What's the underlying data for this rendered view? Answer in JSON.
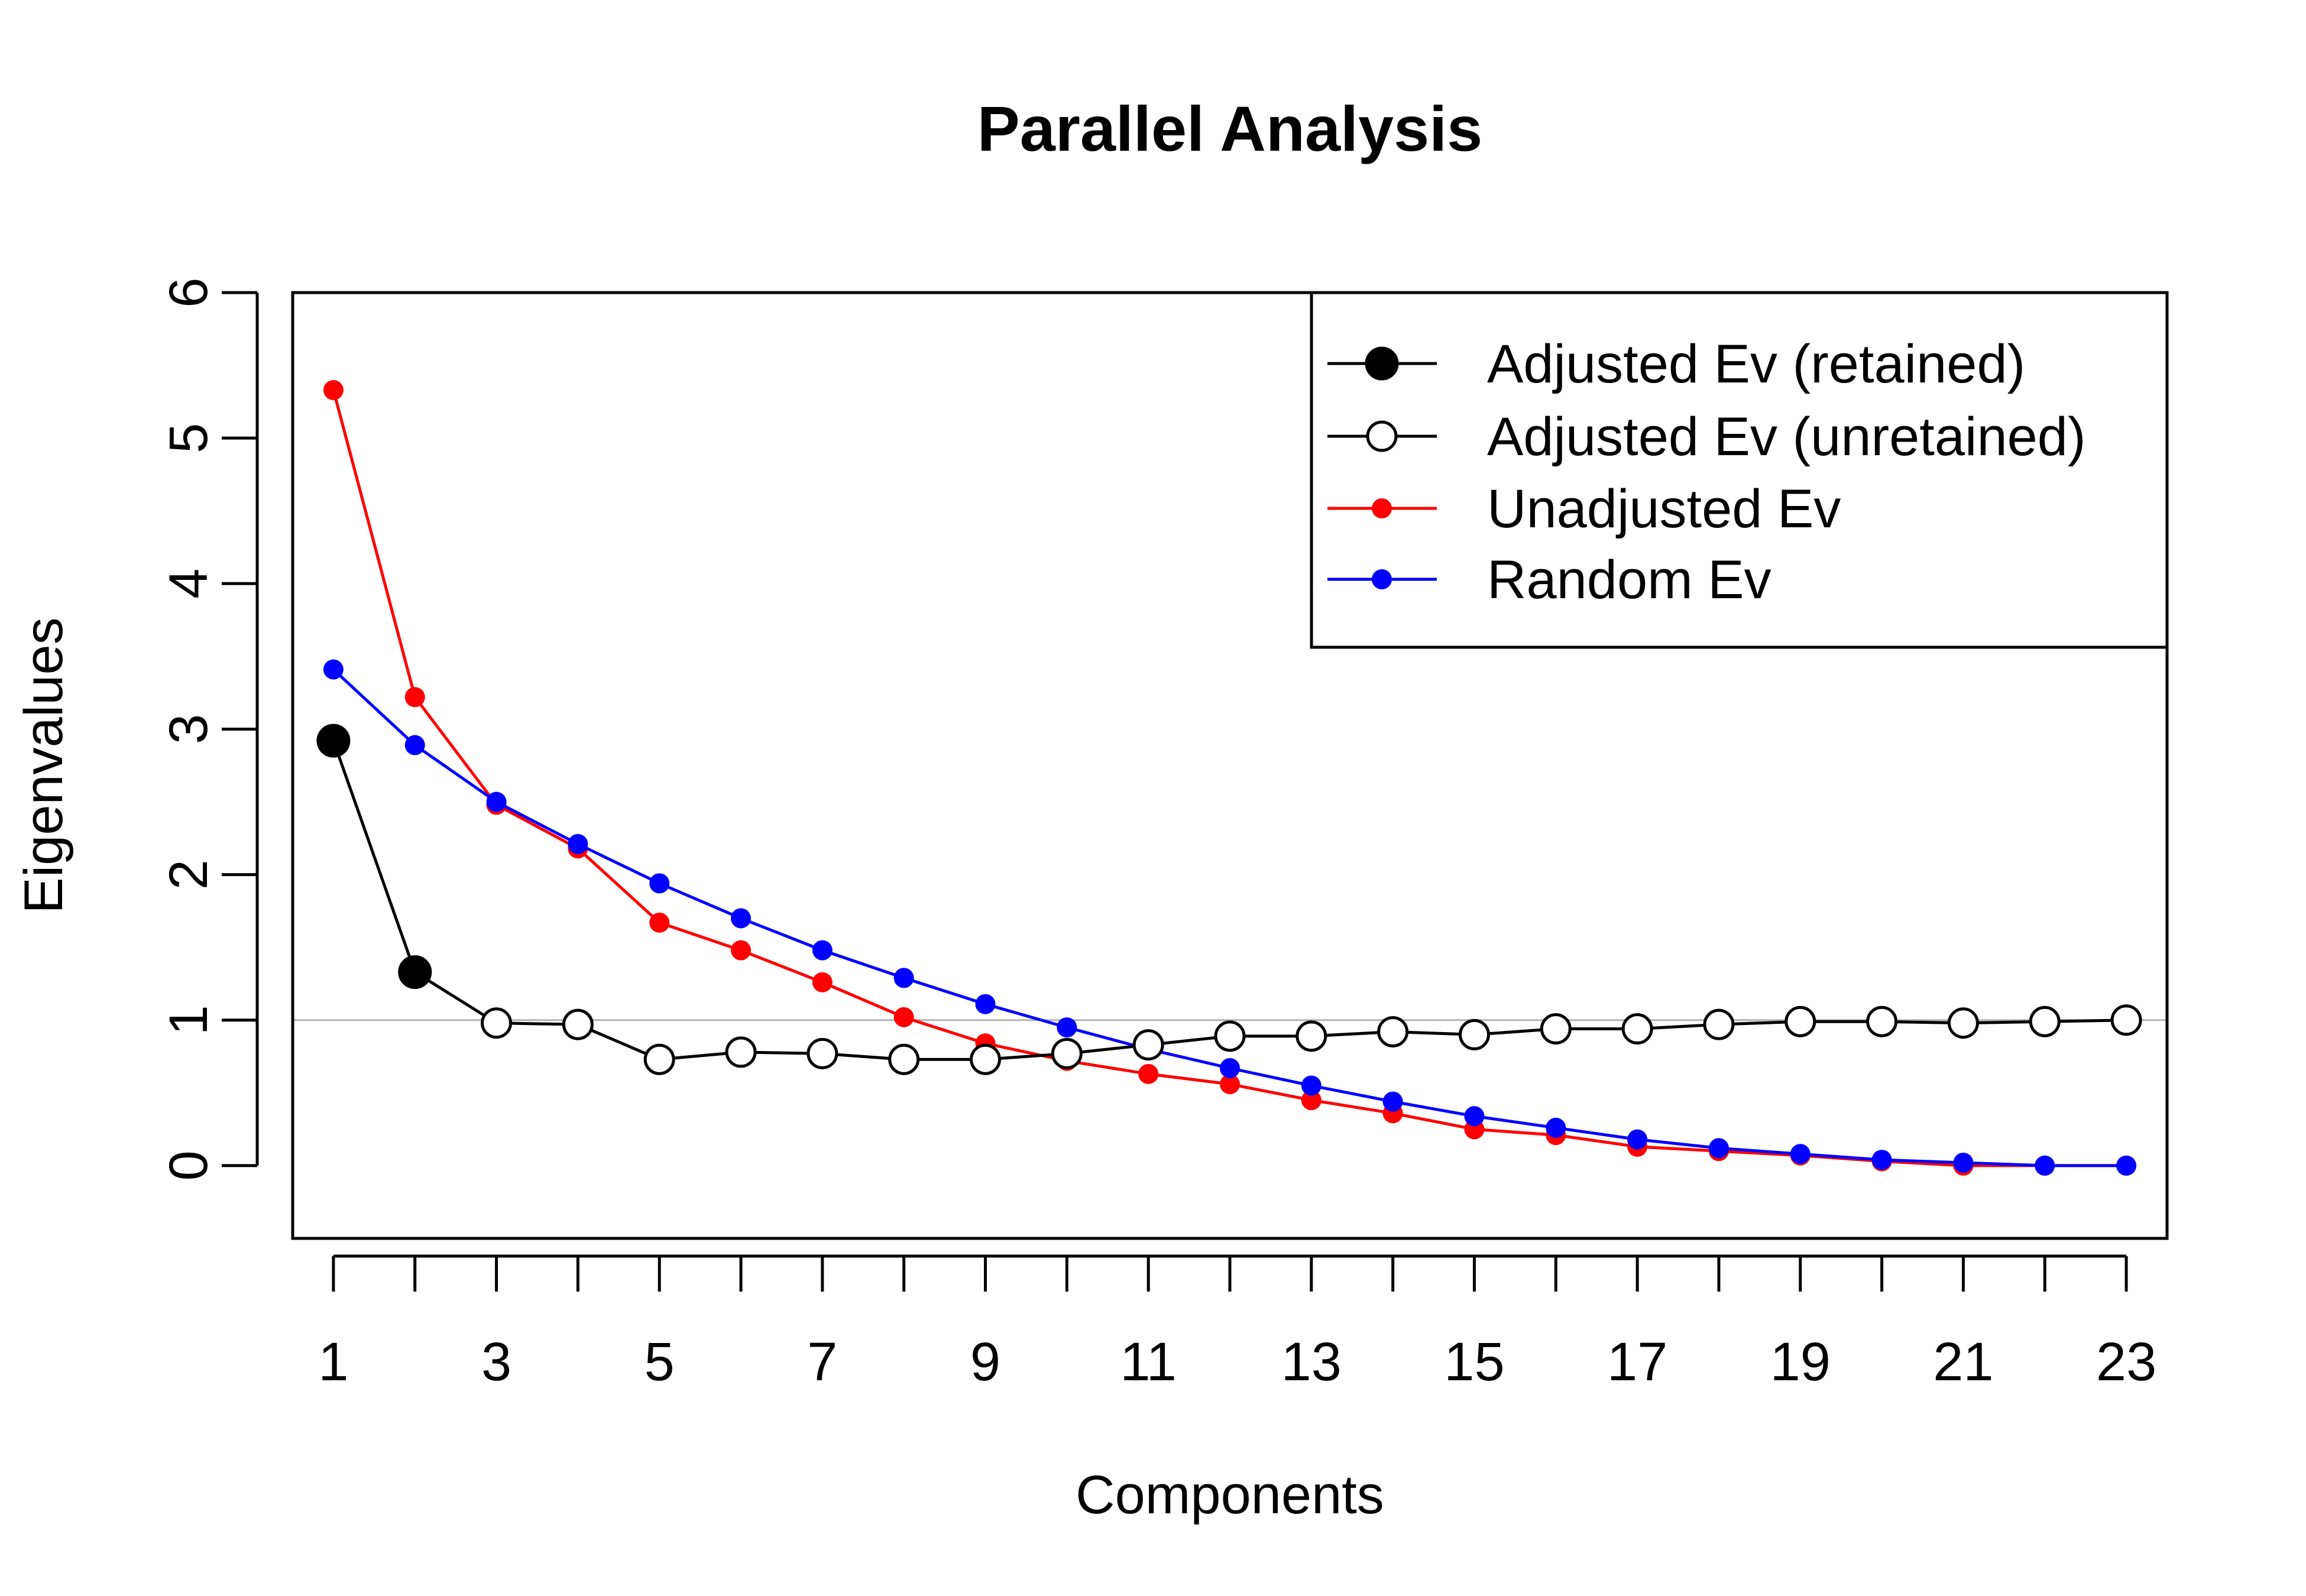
{
  "chart_data": {
    "type": "line",
    "title": "Parallel Analysis",
    "xlabel": "Components",
    "ylabel": "Eigenvalues",
    "x": [
      1,
      2,
      3,
      4,
      5,
      6,
      7,
      8,
      9,
      10,
      11,
      12,
      13,
      14,
      15,
      16,
      17,
      18,
      19,
      20,
      21,
      22,
      23
    ],
    "xlim": [
      0.5,
      23.5
    ],
    "ylim": [
      -0.5,
      6
    ],
    "x_ticks": [
      1,
      2,
      3,
      4,
      5,
      6,
      7,
      8,
      9,
      10,
      11,
      12,
      13,
      14,
      15,
      16,
      17,
      18,
      19,
      20,
      21,
      22,
      23
    ],
    "x_tick_labels": [
      "1",
      "",
      "3",
      "",
      "5",
      "",
      "7",
      "",
      "9",
      "",
      "11",
      "",
      "13",
      "",
      "15",
      "",
      "17",
      "",
      "19",
      "",
      "21",
      "",
      "23"
    ],
    "y_ticks": [
      0,
      1,
      2,
      3,
      4,
      5,
      6
    ],
    "y_tick_labels": [
      "0",
      "1",
      "2",
      "3",
      "4",
      "5",
      "6"
    ],
    "reference_line": {
      "y": 1,
      "color": "#b3b3b3"
    },
    "retained_count": 2,
    "series": [
      {
        "name": "Unadjusted Ev",
        "color": "#ff0000",
        "marker": "filled-small",
        "values": [
          5.33,
          3.22,
          2.48,
          2.18,
          1.67,
          1.48,
          1.26,
          1.02,
          0.84,
          0.72,
          0.63,
          0.56,
          0.45,
          0.36,
          0.25,
          0.21,
          0.13,
          0.1,
          0.07,
          0.03,
          0.0,
          0.0,
          0.0
        ]
      },
      {
        "name": "Random Ev",
        "color": "#0000ff",
        "marker": "filled-small",
        "values": [
          3.41,
          2.89,
          2.5,
          2.21,
          1.94,
          1.7,
          1.48,
          1.29,
          1.11,
          0.95,
          0.8,
          0.67,
          0.55,
          0.44,
          0.34,
          0.26,
          0.18,
          0.12,
          0.08,
          0.04,
          0.02,
          0.0,
          0.0
        ]
      },
      {
        "name": "Adjusted Ev",
        "color": "#000000",
        "marker": "circle-large",
        "values": [
          2.92,
          1.33,
          0.98,
          0.97,
          0.73,
          0.78,
          0.77,
          0.73,
          0.73,
          0.77,
          0.83,
          0.89,
          0.89,
          0.92,
          0.9,
          0.94,
          0.94,
          0.97,
          0.99,
          0.99,
          0.98,
          0.99,
          1.0
        ]
      }
    ],
    "legend": {
      "position": "top-right",
      "entries": [
        {
          "label": "Adjusted Ev (retained)",
          "color": "#000000",
          "marker": "circle-filled"
        },
        {
          "label": "Adjusted Ev (unretained)",
          "color": "#000000",
          "marker": "circle-open"
        },
        {
          "label": "Unadjusted Ev",
          "color": "#ff0000",
          "marker": "dot"
        },
        {
          "label": "Random Ev",
          "color": "#0000ff",
          "marker": "dot"
        }
      ]
    }
  }
}
